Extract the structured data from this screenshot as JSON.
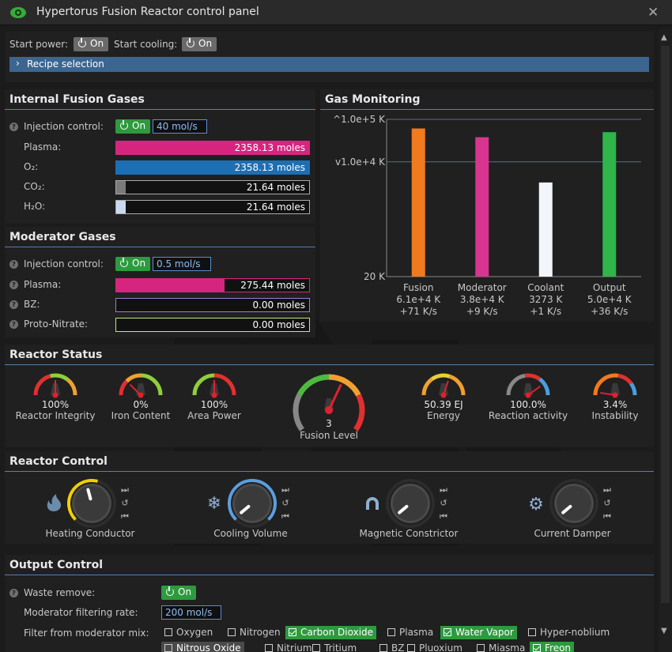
{
  "window": {
    "title": "Hypertorus Fusion Reactor control panel"
  },
  "top": {
    "start_power_label": "Start power:",
    "start_power_value": "On",
    "start_cooling_label": "Start cooling:",
    "start_cooling_value": "On",
    "recipe_label": "Recipe selection"
  },
  "internal": {
    "title": "Internal Fusion Gases",
    "injection_label": "Injection control:",
    "injection_state": "On",
    "injection_rate": "40 mol/s",
    "gases": [
      {
        "name": "Plasma:",
        "value": "2358.13 moles",
        "fill": 1.0,
        "color": "#d6257f"
      },
      {
        "name": "O₂:",
        "value": "2358.13 moles",
        "fill": 1.0,
        "color": "#1d6fb4"
      },
      {
        "name": "CO₂:",
        "value": "21.64 moles",
        "fill": 0.05,
        "color": "#7a7a7a"
      },
      {
        "name": "H₂O:",
        "value": "21.64 moles",
        "fill": 0.05,
        "color": "#c9daf0"
      }
    ]
  },
  "moderator": {
    "title": "Moderator Gases",
    "injection_label": "Injection control:",
    "injection_state": "On",
    "injection_rate": "0.5 mol/s",
    "gases": [
      {
        "name": "Plasma:",
        "value": "275.44 moles",
        "fill": 0.56,
        "color": "#d6257f",
        "border": "#d6257f"
      },
      {
        "name": "BZ:",
        "value": "0.00 moles",
        "fill": 0,
        "color": "#8a5ad0",
        "border": "#9b7ad8"
      },
      {
        "name": "Proto-Nitrate:",
        "value": "0.00 moles",
        "fill": 0,
        "color": "#c6e57a",
        "border": "#c6e57a"
      }
    ]
  },
  "monitoring": {
    "title": "Gas Monitoring",
    "y_ticks": [
      "1.0e+5 K",
      "1.0e+4 K",
      "20 K"
    ]
  },
  "chart_data": {
    "type": "bar",
    "categories": [
      "Fusion",
      "Moderator",
      "Coolant",
      "Output"
    ],
    "values": [
      61000,
      38000,
      3273,
      50000
    ],
    "temps_text": [
      "6.1e+4 K",
      "3.8e+4 K",
      "3273 K",
      "5.0e+4 K"
    ],
    "rates_text": [
      "+71 K/s",
      "+9 K/s",
      "+1 K/s",
      "+36 K/s"
    ],
    "colors": [
      "#f07a1e",
      "#d9348f",
      "#f2f6fa",
      "#2fb54a"
    ],
    "yscale": "log",
    "ylim": [
      20,
      100000
    ],
    "y_ticks": [
      20,
      10000,
      100000
    ],
    "grid": true
  },
  "status": {
    "title": "Reactor Status",
    "gauges": [
      {
        "value": "100%",
        "label": "Reactor Integrity"
      },
      {
        "value": "0%",
        "label": "Iron Content"
      },
      {
        "value": "100%",
        "label": "Area Power"
      },
      {
        "value": "3",
        "label": "Fusion Level"
      },
      {
        "value": "50.39 EJ",
        "label": "Energy"
      },
      {
        "value": "100.0%",
        "label": "Reaction activity"
      },
      {
        "value": "3.4%",
        "label": "Instability"
      }
    ]
  },
  "control": {
    "title": "Reactor Control",
    "knobs": [
      {
        "label": "Heating Conductor",
        "icon": "flame-icon"
      },
      {
        "label": "Cooling Volume",
        "icon": "snowflake-icon"
      },
      {
        "label": "Magnetic Constrictor",
        "icon": "magnet-icon"
      },
      {
        "label": "Current Damper",
        "icon": "gear-icon"
      }
    ]
  },
  "output": {
    "title": "Output Control",
    "waste_label": "Waste remove:",
    "waste_state": "On",
    "filter_rate_label": "Moderator filtering rate:",
    "filter_rate": "200 mol/s",
    "filter_mix_label": "Filter from moderator mix:",
    "filters_row1": [
      {
        "name": "Oxygen",
        "checked": false
      },
      {
        "name": "Nitrogen",
        "checked": false
      },
      {
        "name": "Carbon Dioxide",
        "checked": true
      },
      {
        "name": "Plasma",
        "checked": false
      },
      {
        "name": "Water Vapor",
        "checked": true
      },
      {
        "name": "Hyper-noblium",
        "checked": false
      }
    ],
    "filters_row2": [
      {
        "name": "Nitrous Oxide",
        "checked": false,
        "selected": true
      },
      {
        "name": "Nitrium",
        "checked": false
      },
      {
        "name": "Tritium",
        "checked": false
      },
      {
        "name": "BZ",
        "checked": false
      },
      {
        "name": "Pluoxium",
        "checked": false
      },
      {
        "name": "Miasma",
        "checked": false
      },
      {
        "name": "Freon",
        "checked": true
      }
    ]
  }
}
